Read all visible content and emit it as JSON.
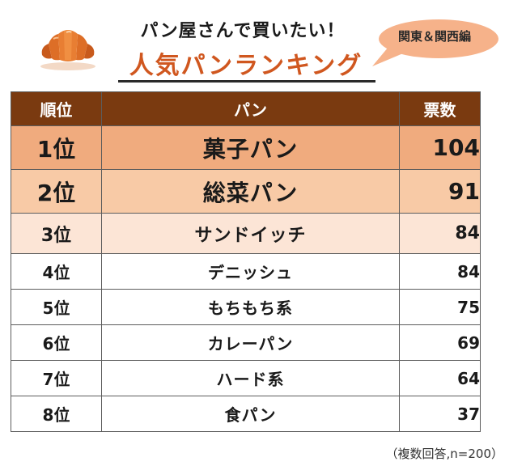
{
  "header": {
    "subtitle": "パン屋さんで買いたい！",
    "title": "人気パンランキング",
    "region_badge": "関東＆関西編",
    "croissant_icon": "croissant-icon"
  },
  "colors": {
    "accent": "#d0571f",
    "header_row": "#7a3a10",
    "rank1": "#f0ab7e",
    "rank2": "#f8caa6",
    "rank3": "#fce5d6",
    "bubble": "#f6b28a"
  },
  "chart_data": {
    "type": "table",
    "columns": [
      "順位",
      "パン",
      "票数"
    ],
    "rows": [
      {
        "rank": "1位",
        "name": "菓子パン",
        "votes": "104"
      },
      {
        "rank": "2位",
        "name": "総菜パン",
        "votes": "91"
      },
      {
        "rank": "3位",
        "name": "サンドイッチ",
        "votes": "84"
      },
      {
        "rank": "4位",
        "name": "デニッシュ",
        "votes": "84"
      },
      {
        "rank": "5位",
        "name": "もちもち系",
        "votes": "75"
      },
      {
        "rank": "6位",
        "name": "カレーパン",
        "votes": "69"
      },
      {
        "rank": "7位",
        "name": "ハード系",
        "votes": "64"
      },
      {
        "rank": "8位",
        "name": "食パン",
        "votes": "37"
      }
    ]
  },
  "footer": {
    "note": "（複数回答,n=200）"
  }
}
